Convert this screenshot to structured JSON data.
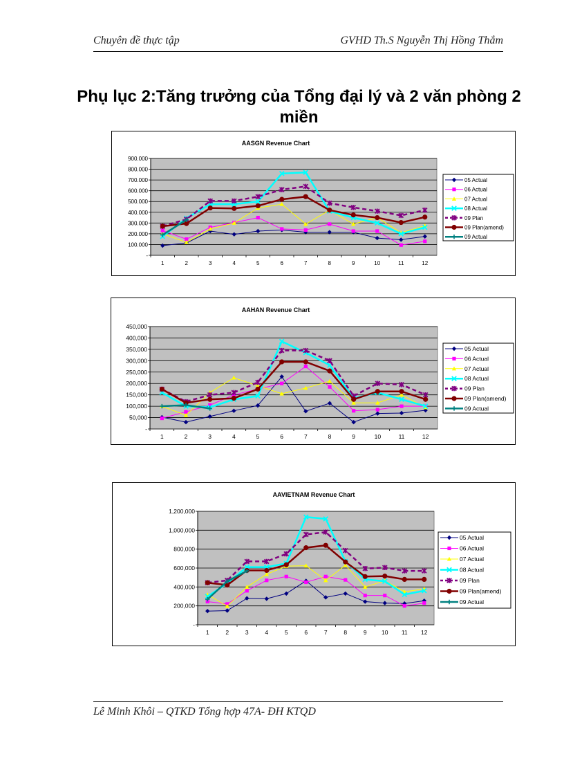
{
  "header": {
    "left": "Chuyên đề thực tập",
    "right": "GVHD Th.S Nguyễn Thị Hồng Thắm"
  },
  "page_title": "Phụ lục 2:Tăng trưởng của Tổng đại lý và 2 văn phòng 2 miền",
  "footer": {
    "text": "Lê Minh Khôi – QTKD Tổng hợp 47A- ĐH KTQD"
  },
  "colors": {
    "plot_bg": "#c0c0c0",
    "05": "#000080",
    "06": "#ff00ff",
    "07": "#ffff00",
    "08": "#00ffff",
    "09p": "#800080",
    "09pa": "#800000",
    "09a": "#008080"
  },
  "chart_data": [
    {
      "type": "line",
      "title": "AASGN Revenue Chart",
      "categories": [
        "1",
        "2",
        "3",
        "4",
        "5",
        "6",
        "7",
        "8",
        "9",
        "10",
        "11",
        "12"
      ],
      "ylim": [
        0,
        900000
      ],
      "yticks": [
        0,
        100000,
        200000,
        300000,
        400000,
        500000,
        600000,
        700000,
        800000,
        900000
      ],
      "ytick_labels": [
        "-",
        "100.000",
        "200.000",
        "300.000",
        "400.000",
        "500.000",
        "600.000",
        "700.000",
        "800.000",
        "900.000"
      ],
      "series": [
        {
          "name": "05 Actual",
          "values": [
            90000,
            115000,
            225000,
            195000,
            225000,
            235000,
            215000,
            215000,
            215000,
            160000,
            145000,
            175000
          ]
        },
        {
          "name": "06 Actual",
          "values": [
            230000,
            150000,
            260000,
            305000,
            350000,
            245000,
            235000,
            290000,
            225000,
            225000,
            95000,
            130000
          ]
        },
        {
          "name": "07 Actual",
          "values": [
            200000,
            120000,
            245000,
            300000,
            440000,
            475000,
            290000,
            420000,
            290000,
            350000,
            210000,
            275000
          ]
        },
        {
          "name": "08 Actual",
          "values": [
            175000,
            345000,
            475000,
            475000,
            500000,
            760000,
            770000,
            410000,
            350000,
            300000,
            200000,
            260000
          ]
        },
        {
          "name": "09 Plan",
          "values": [
            270000,
            335000,
            505000,
            505000,
            545000,
            610000,
            640000,
            485000,
            445000,
            410000,
            370000,
            420000
          ]
        },
        {
          "name": "09 Plan(amend)",
          "values": [
            270000,
            295000,
            440000,
            435000,
            460000,
            520000,
            545000,
            420000,
            375000,
            350000,
            305000,
            355000
          ]
        },
        {
          "name": "09 Actual",
          "values": [
            190000,
            330000,
            null,
            null,
            null,
            null,
            null,
            null,
            null,
            null,
            null,
            null
          ]
        }
      ]
    },
    {
      "type": "line",
      "title": "AAHAN Revenue Chart",
      "categories": [
        "1",
        "2",
        "3",
        "4",
        "5",
        "6",
        "7",
        "8",
        "9",
        "10",
        "11",
        "12"
      ],
      "ylim": [
        0,
        450000
      ],
      "yticks": [
        0,
        50000,
        100000,
        150000,
        200000,
        250000,
        300000,
        350000,
        400000,
        450000
      ],
      "ytick_labels": [
        "-",
        "50,000",
        "100,000",
        "150,000",
        "200,000",
        "250,000",
        "300,000",
        "350,000",
        "400,000",
        "450,000"
      ],
      "series": [
        {
          "name": "05 Actual",
          "values": [
            52000,
            30000,
            55000,
            80000,
            103000,
            230000,
            78000,
            113000,
            30000,
            68000,
            70000,
            82000
          ]
        },
        {
          "name": "06 Actual",
          "values": [
            47000,
            75000,
            105000,
            150000,
            175000,
            200000,
            275000,
            185000,
            80000,
            85000,
            100000,
            100000
          ]
        },
        {
          "name": "07 Actual",
          "values": [
            100000,
            60000,
            160000,
            225000,
            190000,
            155000,
            180000,
            210000,
            115000,
            115000,
            150000,
            95000
          ]
        },
        {
          "name": "08 Actual",
          "values": [
            160000,
            100000,
            95000,
            130000,
            145000,
            385000,
            335000,
            280000,
            135000,
            160000,
            130000,
            100000
          ]
        },
        {
          "name": "09 Plan",
          "values": [
            175000,
            120000,
            150000,
            160000,
            205000,
            345000,
            345000,
            300000,
            145000,
            200000,
            195000,
            150000
          ]
        },
        {
          "name": "09 Plan(amend)",
          "values": [
            175000,
            115000,
            130000,
            135000,
            175000,
            295000,
            295000,
            255000,
            130000,
            165000,
            165000,
            130000
          ]
        },
        {
          "name": "09 Actual",
          "values": [
            100000,
            105000,
            90000,
            null,
            null,
            null,
            null,
            null,
            null,
            null,
            null,
            null
          ]
        }
      ]
    },
    {
      "type": "line",
      "title": "AAVIETNAM Revenue Chart",
      "categories": [
        "1",
        "2",
        "3",
        "4",
        "5",
        "6",
        "7",
        "8",
        "9",
        "10",
        "11",
        "12"
      ],
      "ylim": [
        0,
        1200000
      ],
      "yticks": [
        0,
        200000,
        400000,
        600000,
        800000,
        1000000,
        1200000
      ],
      "ytick_labels": [
        "-",
        "200,000",
        "400,000",
        "600,000",
        "800,000",
        "1,000,000",
        "1,200,000"
      ],
      "series": [
        {
          "name": "05 Actual",
          "values": [
            145000,
            150000,
            280000,
            275000,
            330000,
            465000,
            290000,
            330000,
            245000,
            230000,
            225000,
            255000
          ]
        },
        {
          "name": "06 Actual",
          "values": [
            245000,
            220000,
            360000,
            470000,
            510000,
            450000,
            510000,
            475000,
            310000,
            310000,
            200000,
            230000
          ]
        },
        {
          "name": "07 Actual",
          "values": [
            320000,
            195000,
            400000,
            535000,
            620000,
            625000,
            470000,
            630000,
            400000,
            465000,
            350000,
            380000
          ]
        },
        {
          "name": "08 Actual",
          "values": [
            300000,
            440000,
            610000,
            610000,
            650000,
            1140000,
            1120000,
            670000,
            480000,
            460000,
            320000,
            360000
          ]
        },
        {
          "name": "09 Plan",
          "values": [
            445000,
            470000,
            670000,
            670000,
            750000,
            955000,
            980000,
            785000,
            595000,
            605000,
            570000,
            570000
          ]
        },
        {
          "name": "09 Plan(amend)",
          "values": [
            445000,
            420000,
            575000,
            575000,
            635000,
            815000,
            840000,
            665000,
            510000,
            515000,
            480000,
            480000
          ]
        },
        {
          "name": "09 Actual",
          "values": [
            270000,
            460000,
            570000,
            null,
            null,
            null,
            null,
            null,
            null,
            null,
            null,
            null
          ]
        }
      ]
    }
  ]
}
